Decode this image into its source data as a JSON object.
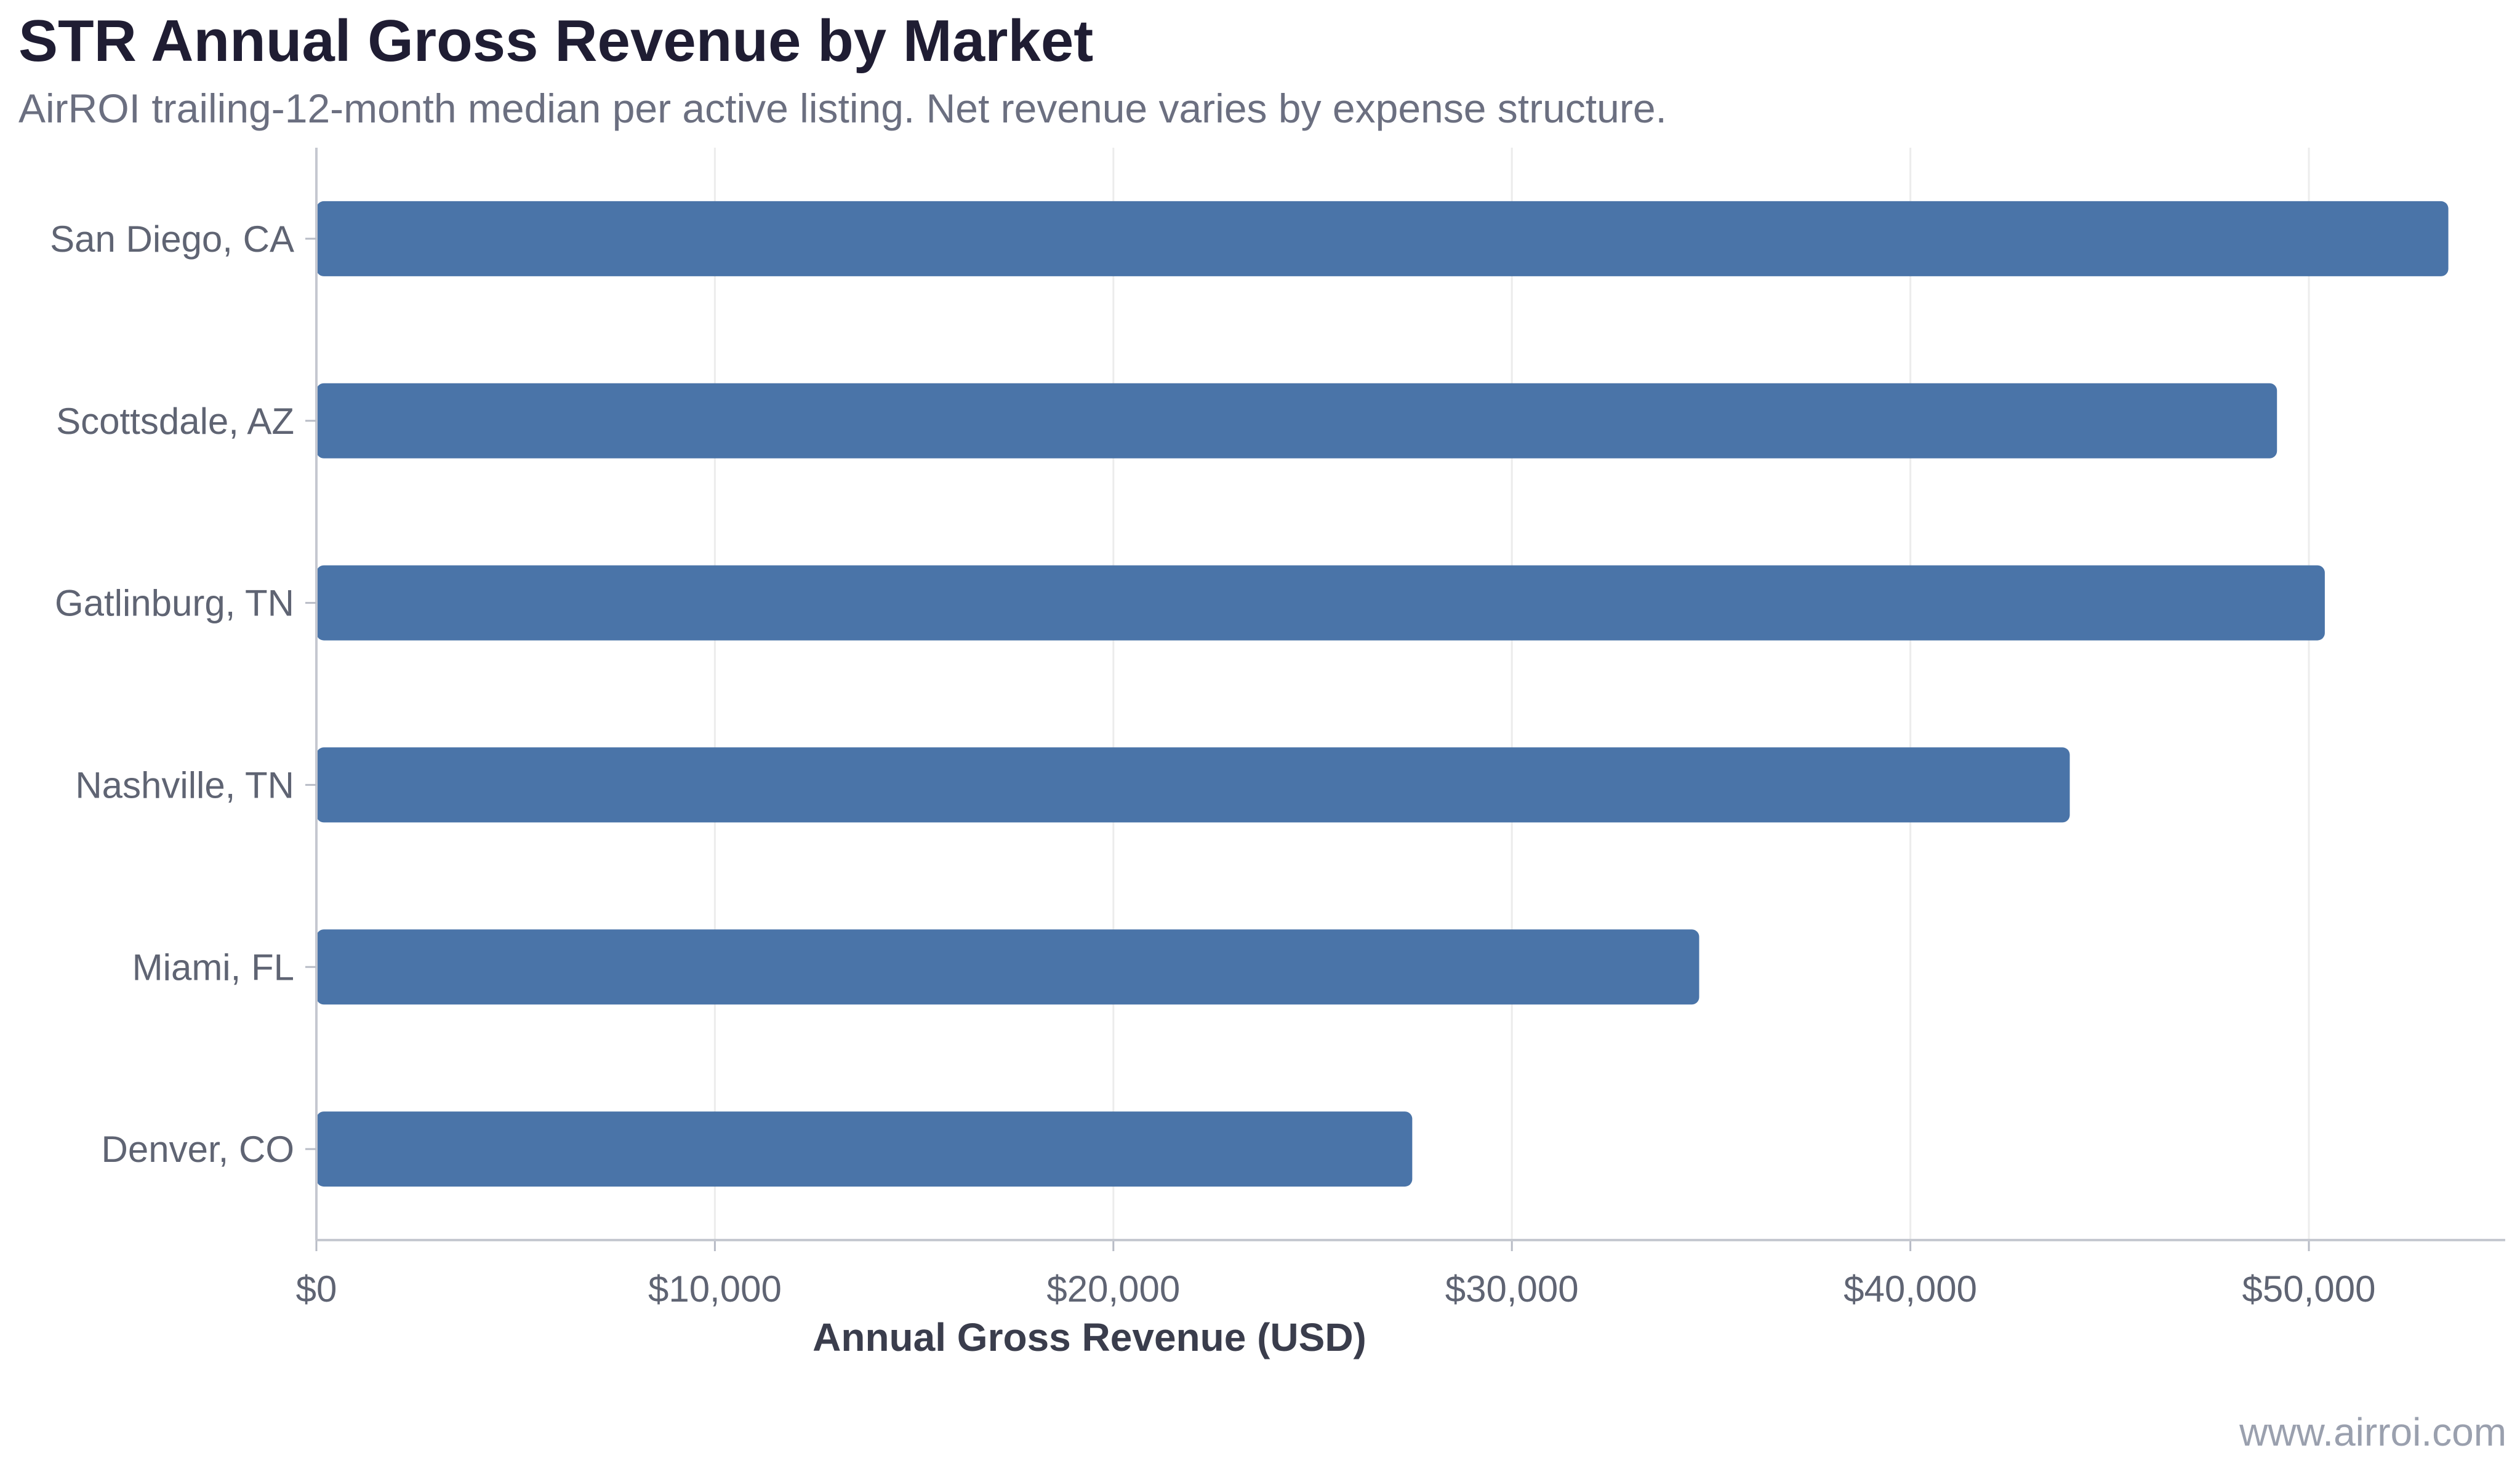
{
  "header": {
    "title": "STR Annual Gross Revenue by Market",
    "subtitle": "AirROI trailing-12-month median per active listing. Net revenue varies by expense structure."
  },
  "footer": {
    "watermark": "www.airroi.com"
  },
  "chart_data": {
    "type": "bar",
    "orientation": "horizontal",
    "title": "STR Annual Gross Revenue by Market",
    "subtitle": "AirROI trailing-12-month median per active listing. Net revenue varies by expense structure.",
    "categories": [
      "San Diego, CA",
      "Scottsdale, AZ",
      "Gatlinburg, TN",
      "Nashville, TN",
      "Miami, FL",
      "Denver, CO"
    ],
    "values": [
      53500,
      49200,
      50400,
      44000,
      34700,
      27500
    ],
    "xlabel": "Annual Gross Revenue (USD)",
    "ylabel": "",
    "xlim": [
      0,
      55000
    ],
    "xticks": [
      0,
      10000,
      20000,
      30000,
      40000,
      50000
    ],
    "xtick_labels": [
      "$0",
      "$10,000",
      "$20,000",
      "$30,000",
      "$40,000",
      "$50,000"
    ],
    "bar_color": "#4a74a8",
    "grid": "vertical",
    "legend": "none"
  }
}
